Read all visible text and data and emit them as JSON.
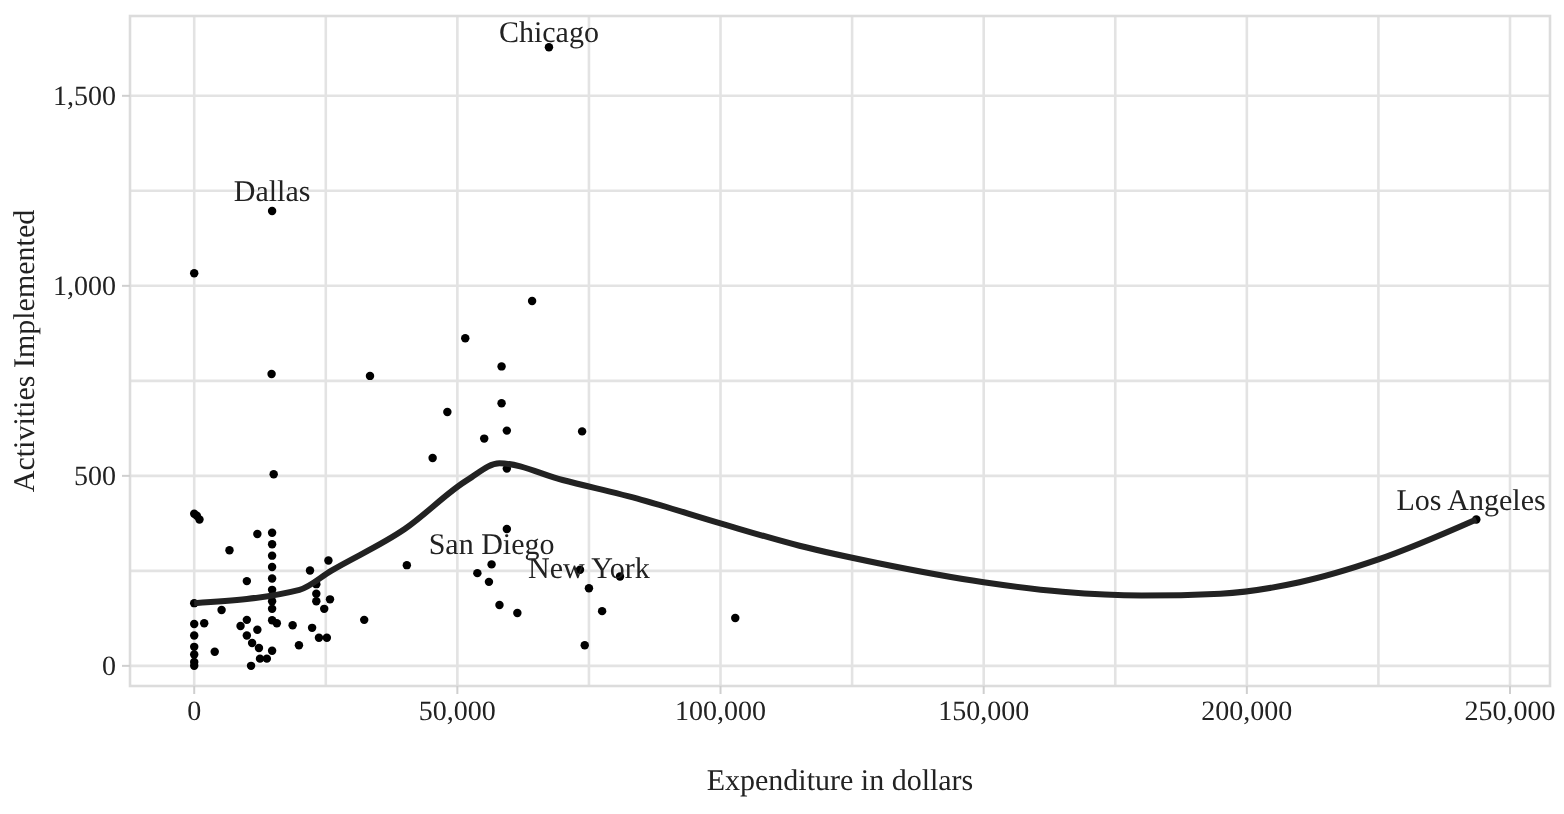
{
  "chart_data": {
    "type": "scatter",
    "xlabel": "Expenditure in dollars",
    "ylabel": "Activities Implemented",
    "xlim": [
      -12200,
      257600
    ],
    "ylim": [
      -53,
      1710
    ],
    "xticks": [
      {
        "value": 0,
        "label": "0"
      },
      {
        "value": 25000,
        "label": null
      },
      {
        "value": 50000,
        "label": "50,000"
      },
      {
        "value": 75000,
        "label": null
      },
      {
        "value": 100000,
        "label": "100,000"
      },
      {
        "value": 125000,
        "label": null
      },
      {
        "value": 150000,
        "label": "150,000"
      },
      {
        "value": 175000,
        "label": null
      },
      {
        "value": 200000,
        "label": "200,000"
      },
      {
        "value": 225000,
        "label": null
      },
      {
        "value": 250000,
        "label": "250,000"
      }
    ],
    "yticks": [
      {
        "value": 0,
        "label": "0"
      },
      {
        "value": 250,
        "label": null
      },
      {
        "value": 500,
        "label": "500"
      },
      {
        "value": 750,
        "label": null
      },
      {
        "value": 1000,
        "label": "1,000"
      },
      {
        "value": 1250,
        "label": null
      },
      {
        "value": 1500,
        "label": "1,500"
      }
    ],
    "grid": true,
    "series": [
      {
        "marker": "circle",
        "color": "#000000",
        "x": [
          67400,
          14800,
          243600,
          0,
          14700,
          15100,
          33400,
          51500,
          64200,
          58400,
          58400,
          59400,
          48100,
          55100,
          45300,
          59400,
          59400,
          53800,
          56500,
          56000,
          58000,
          61400,
          40400,
          32300,
          0,
          500,
          1000,
          12000,
          6700,
          10000,
          22000,
          25500,
          14800,
          14800,
          14800,
          14800,
          14800,
          14800,
          14800,
          14800,
          14800,
          5200,
          0,
          0,
          0,
          0,
          0,
          0,
          0,
          1900,
          3900,
          10000,
          8800,
          10000,
          11000,
          12000,
          12300,
          10800,
          12500,
          13800,
          14800,
          15700,
          18700,
          19900,
          22400,
          23700,
          25200,
          23200,
          23200,
          23200,
          24700,
          25800,
          73700,
          73300,
          75000,
          77500,
          74200,
          80900,
          102800
        ],
        "values": [
          1628,
          1197,
          385,
          1033,
          768,
          504,
          763,
          862,
          960,
          788,
          691,
          619,
          668,
          598,
          547,
          519,
          360,
          244,
          267,
          221,
          160,
          139,
          265,
          121,
          400,
          395,
          385,
          347,
          304,
          223,
          251,
          277,
          350,
          320,
          290,
          260,
          230,
          200,
          170,
          150,
          120,
          147,
          165,
          110,
          80,
          50,
          30,
          10,
          0,
          112,
          37,
          121,
          105,
          80,
          60,
          95,
          47,
          0,
          19,
          19,
          40,
          112,
          107,
          54,
          100,
          74,
          74,
          215,
          190,
          170,
          150,
          175,
          617,
          253,
          204,
          144,
          54,
          235,
          126
        ]
      },
      {
        "type": "line",
        "color": "#222222",
        "x": [
          0,
          20000,
          26000,
          40000,
          52000,
          58000,
          70000,
          85000,
          100000,
          115000,
          130000,
          150000,
          165000,
          180000,
          195000,
          210000,
          225000,
          243600
        ],
        "values": [
          165,
          200,
          250,
          360,
          490,
          533,
          489,
          437,
          375,
          316,
          270,
          220,
          195,
          185,
          190,
          220,
          280,
          385
        ]
      }
    ],
    "annotations": [
      {
        "text": "Chicago",
        "x": 67400,
        "y": 1628
      },
      {
        "text": "Dallas",
        "x": 14800,
        "y": 1197
      },
      {
        "text": "Los Angeles",
        "x": 243600,
        "y": 385
      },
      {
        "text": "San Diego",
        "x": 56500,
        "y": 267
      },
      {
        "text": "New York",
        "x": 75000,
        "y": 204
      }
    ]
  }
}
